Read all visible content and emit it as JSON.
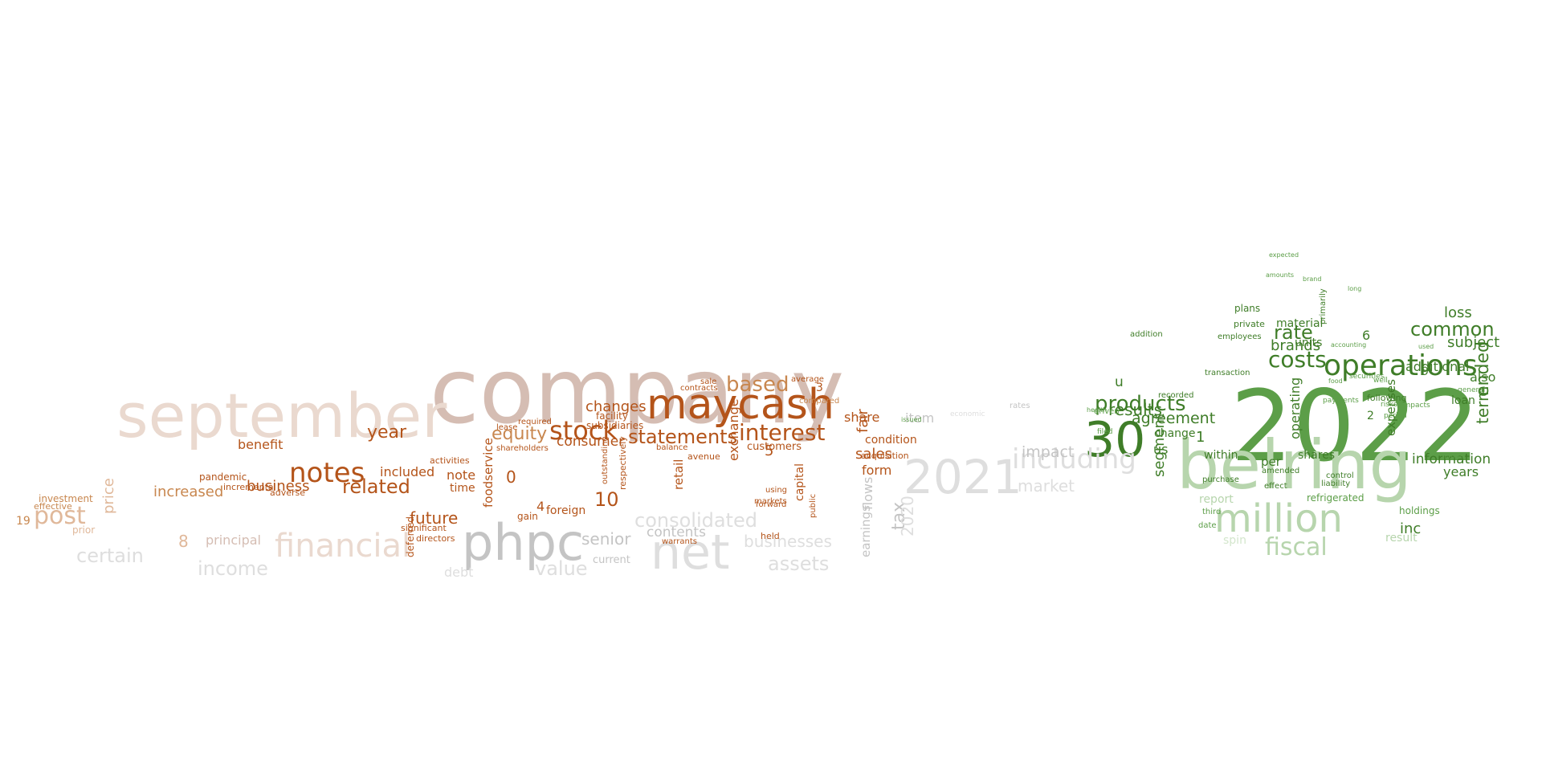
{
  "palette": {
    "orange_dark": "#b4541a",
    "orange": "#c8874f",
    "orange_light": "#e0b89a",
    "tan": "#d5bdb3",
    "tan_light": "#ead9cf",
    "grey": "#c4c4c4",
    "grey_light": "#dedede",
    "green_dark": "#3f7d28",
    "green": "#5c9e48",
    "green_light": "#b7d5ad",
    "green_pale": "#d3e6cc"
  },
  "words": [
    {
      "text": "company",
      "color": "tan"
    },
    {
      "text": "september",
      "color": "tan_light"
    },
    {
      "text": "maycash",
      "color": "orange_dark"
    },
    {
      "text": "phpc",
      "color": "grey"
    },
    {
      "text": "net",
      "color": "grey_light"
    },
    {
      "text": "financial",
      "color": "tan_light"
    },
    {
      "text": "2021",
      "color": "grey_light"
    },
    {
      "text": "notes",
      "color": "orange_dark"
    },
    {
      "text": "stock",
      "color": "orange_dark"
    },
    {
      "text": "interest",
      "color": "orange_dark"
    },
    {
      "text": "statements",
      "color": "orange_dark"
    },
    {
      "text": "post",
      "color": "orange_light"
    },
    {
      "text": "related",
      "color": "orange_dark"
    },
    {
      "text": "based",
      "color": "orange"
    },
    {
      "text": "equity",
      "color": "orange"
    },
    {
      "text": "consolidated",
      "color": "grey_light"
    },
    {
      "text": "year",
      "color": "orange_dark"
    },
    {
      "text": "business",
      "color": "orange_dark"
    },
    {
      "text": "increased",
      "color": "orange"
    },
    {
      "text": "benefit",
      "color": "orange_dark"
    },
    {
      "text": "included",
      "color": "orange_dark"
    },
    {
      "text": "changes",
      "color": "orange_dark"
    },
    {
      "text": "consumer",
      "color": "orange_dark"
    },
    {
      "text": "future",
      "color": "orange_dark"
    },
    {
      "text": "senior",
      "color": "grey"
    },
    {
      "text": "value",
      "color": "grey_light"
    },
    {
      "text": "assets",
      "color": "grey_light"
    },
    {
      "text": "businesses",
      "color": "grey_light"
    },
    {
      "text": "contents",
      "color": "grey"
    },
    {
      "text": "sales",
      "color": "orange_dark"
    },
    {
      "text": "share",
      "color": "orange_dark"
    },
    {
      "text": "form",
      "color": "orange_dark"
    },
    {
      "text": "certain",
      "color": "grey_light"
    },
    {
      "text": "income",
      "color": "grey_light"
    },
    {
      "text": "principal",
      "color": "tan"
    },
    {
      "text": "price",
      "color": "orange_light"
    },
    {
      "text": "customers",
      "color": "orange_dark"
    },
    {
      "text": "exchange",
      "color": "orange_dark"
    },
    {
      "text": "foodservice",
      "color": "orange_dark"
    },
    {
      "text": "retail",
      "color": "orange_dark"
    },
    {
      "text": "capital",
      "color": "orange_dark"
    },
    {
      "text": "tax",
      "color": "grey"
    },
    {
      "text": "fair",
      "color": "orange_dark"
    },
    {
      "text": "flows",
      "color": "grey"
    },
    {
      "text": "earnings",
      "color": "grey"
    },
    {
      "text": "2020",
      "color": "grey_light"
    },
    {
      "text": "condition",
      "color": "orange_dark"
    },
    {
      "text": "acquisition",
      "color": "orange_dark"
    },
    {
      "text": "item",
      "color": "grey"
    },
    {
      "text": "note",
      "color": "orange_dark"
    },
    {
      "text": "time",
      "color": "orange_dark"
    },
    {
      "text": "10",
      "color": "orange_dark"
    },
    {
      "text": "0",
      "color": "orange_dark"
    },
    {
      "text": "4",
      "color": "orange_dark"
    },
    {
      "text": "5",
      "color": "orange_dark"
    },
    {
      "text": "3",
      "color": "orange_dark"
    },
    {
      "text": "foreign",
      "color": "orange_dark"
    },
    {
      "text": "gain",
      "color": "orange_dark"
    },
    {
      "text": "pandemic",
      "color": "orange_dark"
    },
    {
      "text": "incremental",
      "color": "orange_dark"
    },
    {
      "text": "adverse",
      "color": "orange_dark"
    },
    {
      "text": "investment",
      "color": "orange"
    },
    {
      "text": "effective",
      "color": "orange"
    },
    {
      "text": "prior",
      "color": "orange_light"
    },
    {
      "text": "19",
      "color": "orange"
    },
    {
      "text": "8",
      "color": "orange_light"
    },
    {
      "text": "deferred",
      "color": "orange_dark"
    },
    {
      "text": "debt",
      "color": "grey_light"
    },
    {
      "text": "subsidiaries",
      "color": "orange_dark"
    },
    {
      "text": "facility",
      "color": "orange_dark"
    },
    {
      "text": "contracts",
      "color": "orange_dark"
    },
    {
      "text": "sale",
      "color": "orange_dark"
    },
    {
      "text": "average",
      "color": "orange_dark"
    },
    {
      "text": "compared",
      "color": "orange"
    },
    {
      "text": "balance",
      "color": "orange_dark"
    },
    {
      "text": "outstanding",
      "color": "orange_dark"
    },
    {
      "text": "respectively",
      "color": "orange_dark"
    },
    {
      "text": "current",
      "color": "grey"
    },
    {
      "text": "held",
      "color": "orange_dark"
    },
    {
      "text": "forward",
      "color": "orange_dark"
    },
    {
      "text": "markets",
      "color": "orange_dark"
    },
    {
      "text": "using",
      "color": "orange_dark"
    },
    {
      "text": "public",
      "color": "orange_dark"
    },
    {
      "text": "avenue",
      "color": "orange_dark"
    },
    {
      "text": "warrants",
      "color": "orange_dark"
    },
    {
      "text": "significant",
      "color": "orange_dark"
    },
    {
      "text": "directors",
      "color": "orange_dark"
    },
    {
      "text": "activities",
      "color": "orange_dark"
    },
    {
      "text": "shareholders",
      "color": "orange_dark"
    },
    {
      "text": "lease",
      "color": "orange_dark"
    },
    {
      "text": "required",
      "color": "orange_dark"
    },
    {
      "text": "2022",
      "color": "green"
    },
    {
      "text": "belring",
      "color": "green_light"
    },
    {
      "text": "million",
      "color": "green_light"
    },
    {
      "text": "30",
      "color": "green_dark"
    },
    {
      "text": "operations",
      "color": "green_dark"
    },
    {
      "text": "products",
      "color": "green_dark"
    },
    {
      "text": "costs",
      "color": "green_dark"
    },
    {
      "text": "common",
      "color": "green_dark"
    },
    {
      "text": "results",
      "color": "green_dark"
    },
    {
      "text": "agreement",
      "color": "green_dark"
    },
    {
      "text": "rate",
      "color": "green_dark"
    },
    {
      "text": "brands",
      "color": "green_dark"
    },
    {
      "text": "fiscal",
      "color": "green_light"
    },
    {
      "text": "including",
      "color": "grey_light"
    },
    {
      "text": "market",
      "color": "grey_light"
    },
    {
      "text": "impact",
      "color": "grey"
    },
    {
      "text": "ended",
      "color": "green_dark"
    },
    {
      "text": "term",
      "color": "green_dark"
    },
    {
      "text": "subject",
      "color": "green_dark"
    },
    {
      "text": "loss",
      "color": "green_dark"
    },
    {
      "text": "additional",
      "color": "green_dark"
    },
    {
      "text": "information",
      "color": "green_dark"
    },
    {
      "text": "material",
      "color": "green_dark"
    },
    {
      "text": "inc",
      "color": "green_dark"
    },
    {
      "text": "u",
      "color": "green_dark"
    },
    {
      "text": "us",
      "color": "green_dark"
    },
    {
      "text": "segment",
      "color": "green_dark"
    },
    {
      "text": "change",
      "color": "green_dark"
    },
    {
      "text": "within",
      "color": "green_dark"
    },
    {
      "text": "shares",
      "color": "green_dark"
    },
    {
      "text": "per",
      "color": "green_dark"
    },
    {
      "text": "operating",
      "color": "green_dark"
    },
    {
      "text": "loan",
      "color": "green_dark"
    },
    {
      "text": "also",
      "color": "green_dark"
    },
    {
      "text": "years",
      "color": "green_dark"
    },
    {
      "text": "expenses",
      "color": "green_dark"
    },
    {
      "text": "units",
      "color": "green_dark"
    },
    {
      "text": "result",
      "color": "green_light"
    },
    {
      "text": "spin",
      "color": "green_pale"
    },
    {
      "text": "report",
      "color": "green_light"
    },
    {
      "text": "refrigerated",
      "color": "green"
    },
    {
      "text": "holdings",
      "color": "green"
    },
    {
      "text": "6",
      "color": "green_dark"
    },
    {
      "text": "1",
      "color": "green_dark"
    },
    {
      "text": "2",
      "color": "green_dark"
    },
    {
      "text": "9",
      "color": "green_dark"
    },
    {
      "text": "plans",
      "color": "green_dark"
    },
    {
      "text": "private",
      "color": "green_dark"
    },
    {
      "text": "employees",
      "color": "green_dark"
    },
    {
      "text": "addition",
      "color": "green_dark"
    },
    {
      "text": "recorded",
      "color": "green_dark"
    },
    {
      "text": "transaction",
      "color": "green_dark"
    },
    {
      "text": "purchase",
      "color": "green_dark"
    },
    {
      "text": "following",
      "color": "green_dark"
    },
    {
      "text": "control",
      "color": "green_dark"
    },
    {
      "text": "liability",
      "color": "green_dark"
    },
    {
      "text": "effect",
      "color": "green_dark"
    },
    {
      "text": "amended",
      "color": "green_dark"
    },
    {
      "text": "third",
      "color": "green"
    },
    {
      "text": "date",
      "color": "green"
    },
    {
      "text": "primarily",
      "color": "green_dark"
    },
    {
      "text": "expected",
      "color": "green"
    },
    {
      "text": "amounts",
      "color": "green"
    },
    {
      "text": "brand",
      "color": "green"
    },
    {
      "text": "long",
      "color": "green"
    },
    {
      "text": "general",
      "color": "green"
    },
    {
      "text": "higher",
      "color": "green"
    },
    {
      "text": "risks",
      "color": "green"
    },
    {
      "text": "period",
      "color": "green"
    },
    {
      "text": "impacts",
      "color": "green"
    },
    {
      "text": "well",
      "color": "green"
    },
    {
      "text": "payments",
      "color": "green"
    },
    {
      "text": "securities",
      "color": "green"
    },
    {
      "text": "accounting",
      "color": "green"
    },
    {
      "text": "food",
      "color": "green"
    },
    {
      "text": "used",
      "color": "green"
    },
    {
      "text": "issued",
      "color": "green"
    },
    {
      "text": "rates",
      "color": "grey"
    },
    {
      "text": "economic",
      "color": "grey_light"
    },
    {
      "text": "filed",
      "color": "green"
    },
    {
      "text": "driven",
      "color": "green"
    },
    {
      "text": "health",
      "color": "green"
    }
  ]
}
